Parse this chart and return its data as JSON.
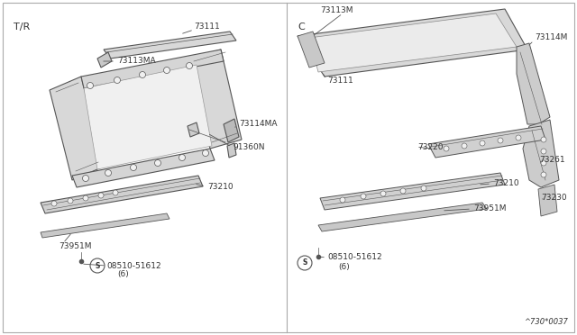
{
  "bg_color": "#ffffff",
  "line_color": "#555555",
  "text_color": "#333333",
  "fill_color": "#e8e8e8",
  "diagram_code": "^730*0037",
  "left_label": "T/R",
  "right_label": "C",
  "font_size_parts": 6.5,
  "font_size_labels": 8,
  "font_size_code": 6
}
